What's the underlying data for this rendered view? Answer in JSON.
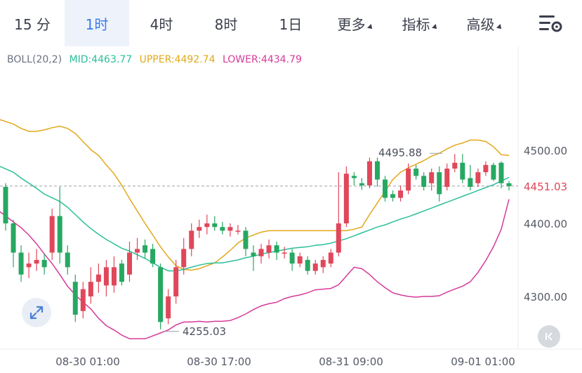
{
  "tabs": [
    {
      "label": "15 分",
      "active": false,
      "dropdown": false
    },
    {
      "label": "1时",
      "active": true,
      "dropdown": false
    },
    {
      "label": "4时",
      "active": false,
      "dropdown": false
    },
    {
      "label": "8时",
      "active": false,
      "dropdown": false
    },
    {
      "label": "1日",
      "active": false,
      "dropdown": false
    },
    {
      "label": "更多",
      "active": false,
      "dropdown": true
    },
    {
      "label": "指标",
      "active": false,
      "dropdown": true
    },
    {
      "label": "高级",
      "active": false,
      "dropdown": true
    }
  ],
  "settings_icon": "chart-settings-icon",
  "legend": {
    "name": "BOLL(20,2)",
    "mid": "MID:4463.77",
    "upper": "UPPER:4492.74",
    "lower": "LOWER:4434.79"
  },
  "colors": {
    "up": "#e0475a",
    "down": "#27a862",
    "mid": "#2bbf9a",
    "upper": "#e2a81a",
    "lower": "#d63a9a",
    "price_label": "#e0475a",
    "axis_text": "#555a66"
  },
  "chart_data": {
    "type": "candlestick",
    "y_ticks": [
      {
        "label": "4500.00",
        "value": 4500
      },
      {
        "label": "4400.00",
        "value": 4400
      },
      {
        "label": "4300.00",
        "value": 4300
      }
    ],
    "x_labels": [
      "08-30 01:00",
      "08-30 17:00",
      "08-31 09:00",
      "09-01 01:00"
    ],
    "current_price": {
      "label": "4451.03",
      "value": 4451.03
    },
    "annotations": [
      {
        "label": "4495.88",
        "value": 4495.88
      },
      {
        "label": "4255.03",
        "value": 4255.03
      }
    ],
    "candles": [
      [
        4450,
        4400,
        4455,
        4390
      ],
      [
        4400,
        4360,
        4405,
        4340
      ],
      [
        4360,
        4330,
        4370,
        4320
      ],
      [
        4340,
        4345,
        4360,
        4325
      ],
      [
        4345,
        4350,
        4365,
        4335
      ],
      [
        4350,
        4340,
        4358,
        4330
      ],
      [
        4360,
        4410,
        4420,
        4350
      ],
      [
        4410,
        4360,
        4450,
        4345
      ],
      [
        4360,
        4340,
        4370,
        4330
      ],
      [
        4320,
        4275,
        4330,
        4265
      ],
      [
        4280,
        4310,
        4320,
        4270
      ],
      [
        4300,
        4320,
        4340,
        4290
      ],
      [
        4320,
        4330,
        4345,
        4305
      ],
      [
        4315,
        4340,
        4350,
        4300
      ],
      [
        4315,
        4340,
        4355,
        4305
      ],
      [
        4345,
        4320,
        4350,
        4315
      ],
      [
        4330,
        4360,
        4375,
        4320
      ],
      [
        4360,
        4365,
        4380,
        4350
      ],
      [
        4370,
        4360,
        4378,
        4352
      ],
      [
        4365,
        4345,
        4372,
        4340
      ],
      [
        4340,
        4265,
        4345,
        4255
      ],
      [
        4270,
        4300,
        4310,
        4262
      ],
      [
        4300,
        4340,
        4350,
        4290
      ],
      [
        4340,
        4365,
        4380,
        4330
      ],
      [
        4365,
        4390,
        4400,
        4355
      ],
      [
        4390,
        4395,
        4405,
        4380
      ],
      [
        4395,
        4400,
        4412,
        4385
      ],
      [
        4400,
        4395,
        4410,
        4390
      ],
      [
        4395,
        4390,
        4402,
        4385
      ],
      [
        4390,
        4395,
        4400,
        4382
      ],
      [
        4390,
        4390,
        4398,
        4385
      ],
      [
        4390,
        4365,
        4395,
        4355
      ],
      [
        4360,
        4355,
        4370,
        4335
      ],
      [
        4355,
        4365,
        4372,
        4345
      ],
      [
        4360,
        4370,
        4378,
        4352
      ],
      [
        4370,
        4360,
        4375,
        4350
      ],
      [
        4360,
        4360,
        4368,
        4352
      ],
      [
        4360,
        4345,
        4365,
        4335
      ],
      [
        4345,
        4355,
        4360,
        4340
      ],
      [
        4350,
        4335,
        4355,
        4330
      ],
      [
        4335,
        4345,
        4350,
        4330
      ],
      [
        4340,
        4350,
        4355,
        4332
      ],
      [
        4345,
        4360,
        4365,
        4340
      ],
      [
        4360,
        4400,
        4470,
        4355
      ],
      [
        4400,
        4468,
        4478,
        4395
      ],
      [
        4465,
        4462,
        4470,
        4452
      ],
      [
        4455,
        4452,
        4462,
        4446
      ],
      [
        4452,
        4485,
        4490,
        4448
      ],
      [
        4485,
        4460,
        4490,
        4450
      ],
      [
        4460,
        4435,
        4465,
        4430
      ],
      [
        4440,
        4435,
        4445,
        4430
      ],
      [
        4435,
        4445,
        4452,
        4430
      ],
      [
        4445,
        4475,
        4482,
        4440
      ],
      [
        4475,
        4465,
        4480,
        4460
      ],
      [
        4465,
        4450,
        4470,
        4445
      ],
      [
        4455,
        4470,
        4475,
        4445
      ],
      [
        4470,
        4440,
        4478,
        4430
      ],
      [
        4450,
        4475,
        4482,
        4445
      ],
      [
        4475,
        4483,
        4495,
        4470
      ],
      [
        4483,
        4460,
        4495,
        4455
      ],
      [
        4462,
        4450,
        4480,
        4445
      ],
      [
        4455,
        4470,
        4475,
        4450
      ],
      [
        4470,
        4480,
        4485,
        4465
      ],
      [
        4480,
        4460,
        4483,
        4458
      ],
      [
        4483,
        4455,
        4485,
        4448
      ],
      [
        4455,
        4451,
        4458,
        4445
      ]
    ],
    "mid_band": [
      4478,
      4470,
      4462,
      4455,
      4448,
      4440,
      4435,
      4430,
      4422,
      4412,
      4402,
      4393,
      4385,
      4378,
      4372,
      4366,
      4362,
      4357,
      4352,
      4346,
      4340,
      4335,
      4335,
      4337,
      4340,
      4343,
      4345,
      4346,
      4346,
      4348,
      4350,
      4353,
      4355,
      4358,
      4360,
      4362,
      4364,
      4366,
      4367,
      4368,
      4370,
      4371,
      4373,
      4376,
      4379,
      4383,
      4387,
      4391,
      4395,
      4398,
      4402,
      4406,
      4409,
      4413,
      4417,
      4421,
      4425,
      4429,
      4433,
      4437,
      4441,
      4445,
      4449,
      4453,
      4458,
      4463
    ],
    "upper_band": [
      4542,
      4536,
      4530,
      4526,
      4526,
      4528,
      4531,
      4533,
      4530,
      4523,
      4512,
      4501,
      4493,
      4480,
      4468,
      4452,
      4434,
      4417,
      4400,
      4384,
      4368,
      4354,
      4342,
      4337,
      4336,
      4338,
      4342,
      4346,
      4354,
      4363,
      4373,
      4380,
      4384,
      4388,
      4390,
      4390,
      4390,
      4390,
      4390,
      4390,
      4390,
      4390,
      4390,
      4390,
      4390,
      4392,
      4395,
      4412,
      4428,
      4444,
      4460,
      4470,
      4476,
      4481,
      4486,
      4492,
      4496,
      4502,
      4507,
      4510,
      4514,
      4514,
      4512,
      4505,
      4494,
      4493
    ],
    "lower_band": [
      4416,
      4402,
      4394,
      4384,
      4372,
      4358,
      4345,
      4330,
      4314,
      4302,
      4292,
      4283,
      4270,
      4260,
      4254,
      4247,
      4242,
      4242,
      4242,
      4246,
      4250,
      4254,
      4261,
      4265,
      4265,
      4266,
      4265,
      4266,
      4266,
      4267,
      4271,
      4276,
      4282,
      4287,
      4290,
      4292,
      4297,
      4300,
      4302,
      4305,
      4309,
      4310,
      4311,
      4316,
      4328,
      4340,
      4338,
      4330,
      4320,
      4312,
      4305,
      4302,
      4300,
      4299,
      4300,
      4300,
      4301,
      4306,
      4310,
      4314,
      4320,
      4333,
      4349,
      4368,
      4392,
      4433
    ]
  },
  "expand_icon": "expand-arrows-icon",
  "back_icon": "collapse-left-icon"
}
